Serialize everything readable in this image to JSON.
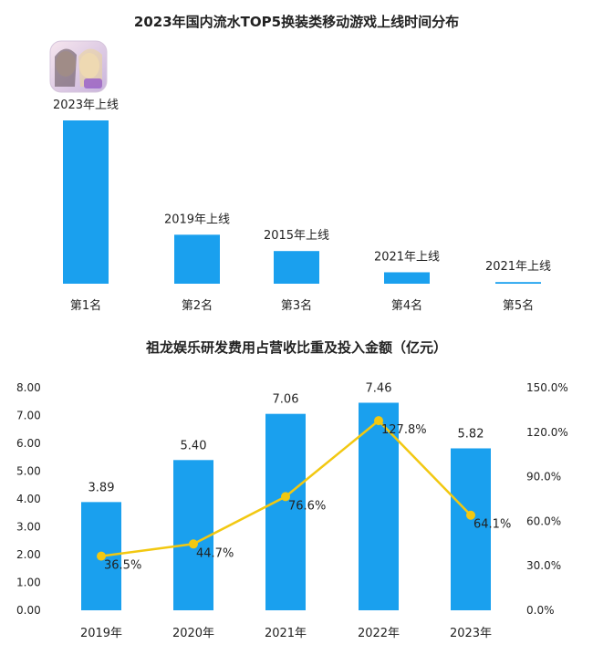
{
  "charts": {
    "chart1": {
      "title": "2023年国内流水TOP5换装类移动游戏上线时间分布",
      "icon_name": "game-app-icon",
      "bar_color": "#1aa0ee"
    },
    "chart2": {
      "title": "祖龙娱乐研发费用占营收比重及投入金额（亿元）",
      "bar_color": "#1aa0ee",
      "line_color": "#f2c811"
    }
  },
  "chart_data": [
    {
      "type": "bar",
      "title": "2023年国内流水TOP5换装类移动游戏上线时间分布",
      "categories": [
        "第1名",
        "第2名",
        "第3名",
        "第4名",
        "第5名"
      ],
      "values": [
        100,
        30,
        20,
        7,
        1
      ],
      "bar_labels": [
        "2023年上线",
        "2019年上线",
        "2015年上线",
        "2021年上线",
        "2021年上线"
      ],
      "ylabel": "",
      "grid": false
    },
    {
      "type": "bar",
      "title": "祖龙娱乐研发费用占营收比重及投入金额（亿元）",
      "categories": [
        "2019年",
        "2020年",
        "2021年",
        "2022年",
        "2023年"
      ],
      "series": [
        {
          "type": "bar",
          "axis": "left",
          "values": [
            3.89,
            5.4,
            7.06,
            7.46,
            5.82
          ],
          "labels": [
            "3.89",
            "5.40",
            "7.06",
            "7.46",
            "5.82"
          ]
        },
        {
          "type": "line",
          "axis": "right",
          "values": [
            36.5,
            44.7,
            76.6,
            127.8,
            64.1
          ],
          "labels": [
            "36.5%",
            "44.7%",
            "76.6%",
            "127.8%",
            "64.1%"
          ]
        }
      ],
      "ylim_left": [
        0,
        8
      ],
      "yticks_left": [
        "0.00",
        "1.00",
        "2.00",
        "3.00",
        "4.00",
        "5.00",
        "6.00",
        "7.00",
        "8.00"
      ],
      "ylim_right": [
        0,
        150
      ],
      "yticks_right": [
        "0.0%",
        "30.0%",
        "60.0%",
        "90.0%",
        "120.0%",
        "150.0%"
      ],
      "grid": false
    }
  ]
}
